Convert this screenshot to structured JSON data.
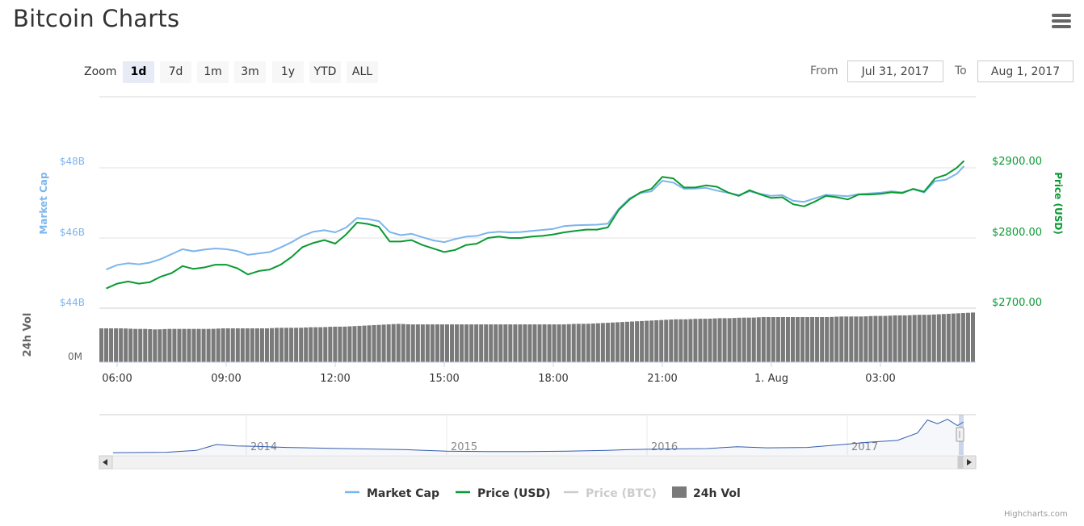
{
  "header": {
    "title": "Bitcoin Charts"
  },
  "zoom": {
    "label": "Zoom",
    "buttons": [
      "1d",
      "7d",
      "1m",
      "3m",
      "1y",
      "YTD",
      "ALL"
    ],
    "active": "1d"
  },
  "range": {
    "from_label": "From",
    "from_value": "Jul 31, 2017",
    "to_label": "To",
    "to_value": "Aug 1, 2017"
  },
  "credits": "Highcharts.com",
  "colors": {
    "market_cap": "#7cb5ec",
    "price_usd": "#0a9a33",
    "price_btc": "#cccccc",
    "volume": "#7a7a7a"
  },
  "chart_data": {
    "type": "line",
    "x_axis_labels": [
      "06:00",
      "09:00",
      "12:00",
      "15:00",
      "18:00",
      "21:00",
      "1. Aug",
      "03:00"
    ],
    "left_axis": {
      "title": "Market Cap",
      "ticks": [
        "$48B",
        "$46B",
        "$44B"
      ],
      "ylim": [
        44,
        50
      ]
    },
    "right_axis": {
      "title": "Price (USD)",
      "ticks": [
        "$2900.00",
        "$2800.00",
        "$2700.00"
      ],
      "ylim": [
        2700,
        2900
      ]
    },
    "volume_axis": {
      "title": "24h Vol",
      "ticks": [
        "0M"
      ]
    },
    "x_hours": [
      5.7,
      6.0,
      6.3,
      6.6,
      6.9,
      7.2,
      7.5,
      7.8,
      8.1,
      8.4,
      8.7,
      9.0,
      9.3,
      9.6,
      9.9,
      10.2,
      10.5,
      10.8,
      11.1,
      11.4,
      11.7,
      12.0,
      12.3,
      12.6,
      12.9,
      13.2,
      13.5,
      13.8,
      14.1,
      14.4,
      14.7,
      15.0,
      15.3,
      15.6,
      15.9,
      16.2,
      16.5,
      16.8,
      17.1,
      17.4,
      17.7,
      18.0,
      18.3,
      18.6,
      18.9,
      19.2,
      19.5,
      19.8,
      20.1,
      20.4,
      20.7,
      21.0,
      21.3,
      21.6,
      21.9,
      22.2,
      22.5,
      22.8,
      23.1,
      23.4,
      23.7,
      24.0,
      24.3,
      24.6,
      24.9,
      25.2,
      25.5,
      25.8,
      26.1,
      26.4,
      26.7,
      27.0,
      27.3,
      27.6,
      27.9,
      28.2,
      28.5,
      28.8,
      29.1,
      29.3
    ],
    "series": [
      {
        "name": "Price (USD)",
        "unit": "USD",
        "values": [
          2728,
          2735,
          2738,
          2735,
          2737,
          2745,
          2750,
          2760,
          2756,
          2758,
          2762,
          2762,
          2757,
          2748,
          2753,
          2755,
          2762,
          2773,
          2787,
          2793,
          2797,
          2792,
          2805,
          2822,
          2820,
          2816,
          2795,
          2795,
          2797,
          2790,
          2785,
          2780,
          2783,
          2790,
          2792,
          2800,
          2802,
          2800,
          2800,
          2802,
          2803,
          2805,
          2808,
          2810,
          2812,
          2812,
          2815,
          2840,
          2855,
          2865,
          2870,
          2887,
          2885,
          2872,
          2872,
          2875,
          2873,
          2865,
          2860,
          2868,
          2862,
          2857,
          2858,
          2848,
          2845,
          2852,
          2860,
          2858,
          2855,
          2862,
          2862,
          2863,
          2865,
          2864,
          2870,
          2866,
          2885,
          2890,
          2900,
          2910
        ]
      },
      {
        "name": "Market Cap",
        "unit": "$B",
        "values": [
          45.1,
          45.23,
          45.28,
          45.25,
          45.3,
          45.4,
          45.54,
          45.68,
          45.62,
          45.67,
          45.7,
          45.68,
          45.63,
          45.52,
          45.56,
          45.6,
          45.73,
          45.88,
          46.06,
          46.18,
          46.22,
          46.16,
          46.3,
          46.57,
          46.54,
          46.48,
          46.17,
          46.08,
          46.12,
          46.02,
          45.93,
          45.88,
          45.97,
          46.04,
          46.06,
          46.15,
          46.18,
          46.16,
          46.17,
          46.2,
          46.23,
          46.26,
          46.34,
          46.36,
          46.37,
          46.38,
          46.41,
          46.83,
          47.13,
          47.28,
          47.33,
          47.63,
          47.58,
          47.4,
          47.41,
          47.43,
          47.35,
          47.29,
          47.22,
          47.33,
          47.26,
          47.2,
          47.22,
          47.06,
          47.03,
          47.13,
          47.23,
          47.21,
          47.19,
          47.25,
          47.27,
          47.29,
          47.33,
          47.3,
          47.39,
          47.3,
          47.62,
          47.66,
          47.83,
          48.05
        ]
      },
      {
        "name": "Price (BTC)",
        "values": []
      },
      {
        "name": "24h Vol",
        "relative_values": [
          0.6,
          0.6,
          0.6,
          0.59,
          0.59,
          0.58,
          0.59,
          0.59,
          0.59,
          0.59,
          0.59,
          0.6,
          0.6,
          0.6,
          0.6,
          0.6,
          0.61,
          0.61,
          0.61,
          0.62,
          0.62,
          0.63,
          0.63,
          0.64,
          0.65,
          0.66,
          0.67,
          0.68,
          0.67,
          0.67,
          0.67,
          0.67,
          0.67,
          0.67,
          0.67,
          0.67,
          0.67,
          0.67,
          0.67,
          0.67,
          0.67,
          0.67,
          0.67,
          0.68,
          0.68,
          0.69,
          0.7,
          0.71,
          0.72,
          0.73,
          0.74,
          0.75,
          0.76,
          0.76,
          0.77,
          0.77,
          0.78,
          0.78,
          0.79,
          0.79,
          0.8,
          0.8,
          0.8,
          0.8,
          0.8,
          0.8,
          0.8,
          0.81,
          0.81,
          0.81,
          0.82,
          0.82,
          0.83,
          0.83,
          0.84,
          0.84,
          0.85,
          0.86,
          0.87,
          0.88
        ]
      }
    ],
    "navigator": {
      "x_labels": [
        "2014",
        "2015",
        "2016",
        "2017"
      ],
      "x_years": [
        2013.3,
        2013.6,
        2013.75,
        2013.85,
        2013.95,
        2014.05,
        2014.2,
        2014.4,
        2014.6,
        2014.8,
        2015.0,
        2015.2,
        2015.4,
        2015.6,
        2015.8,
        2015.9,
        2016.0,
        2016.3,
        2016.45,
        2016.6,
        2016.8,
        2017.0,
        2017.1,
        2017.25,
        2017.35,
        2017.4,
        2017.45,
        2017.5,
        2017.55,
        2017.58
      ],
      "relative_values": [
        0.02,
        0.03,
        0.08,
        0.24,
        0.2,
        0.19,
        0.16,
        0.14,
        0.12,
        0.1,
        0.06,
        0.05,
        0.05,
        0.06,
        0.08,
        0.1,
        0.11,
        0.13,
        0.18,
        0.15,
        0.16,
        0.25,
        0.3,
        0.35,
        0.55,
        0.9,
        0.8,
        0.92,
        0.75,
        0.85
      ]
    },
    "legend": {
      "placement": "bottom-center",
      "items": [
        {
          "name": "Market Cap",
          "visible": true
        },
        {
          "name": "Price (USD)",
          "visible": true
        },
        {
          "name": "Price (BTC)",
          "visible": false
        },
        {
          "name": "24h Vol",
          "visible": true
        }
      ]
    }
  }
}
